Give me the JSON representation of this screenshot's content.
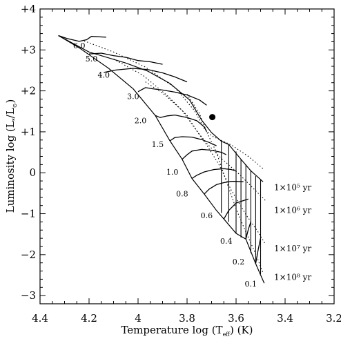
{
  "chart_data": {
    "type": "line",
    "title": "",
    "xlabel_main": "Temperature log (T",
    "xlabel_sub": "eff",
    "xlabel_tail": ") (K)",
    "ylabel_main": "Luminosity log (L",
    "ylabel_sub1": "*",
    "ylabel_mid": "/L",
    "ylabel_sub2": "⊙",
    "ylabel_tail": ")",
    "xlim": [
      4.4,
      3.2
    ],
    "ylim": [
      -3.2,
      4.0
    ],
    "x_reversed": true,
    "x_ticks": [
      {
        "value": 4.4,
        "label": "4.4"
      },
      {
        "value": 4.2,
        "label": "4.2"
      },
      {
        "value": 4.0,
        "label": "4"
      },
      {
        "value": 3.8,
        "label": "3.8"
      },
      {
        "value": 3.6,
        "label": "3.6"
      },
      {
        "value": 3.4,
        "label": "3.4"
      },
      {
        "value": 3.2,
        "label": "3.2"
      }
    ],
    "y_ticks": [
      {
        "value": 4,
        "label": "+4"
      },
      {
        "value": 3,
        "label": "+3"
      },
      {
        "value": 2,
        "label": "+2"
      },
      {
        "value": 1,
        "label": "+1"
      },
      {
        "value": 0,
        "label": "0"
      },
      {
        "value": -1,
        "label": "−1"
      },
      {
        "value": -2,
        "label": "−2"
      },
      {
        "value": -3,
        "label": "−3"
      }
    ],
    "tracks": [
      {
        "mass": "6.0",
        "label_at": [
          4.24,
          3.04
        ],
        "points": [
          [
            4.325,
            3.35
          ],
          [
            4.29,
            3.28
          ],
          [
            4.24,
            3.21
          ],
          [
            4.21,
            3.25
          ],
          [
            4.19,
            3.33
          ],
          [
            4.13,
            3.31
          ]
        ]
      },
      {
        "mass": "5.0",
        "label_at": [
          4.19,
          2.72
        ],
        "points": [
          [
            4.2,
            2.9
          ],
          [
            4.15,
            2.92
          ],
          [
            4.1,
            2.86
          ],
          [
            4.05,
            2.82
          ],
          [
            4.0,
            2.74
          ],
          [
            3.95,
            2.71
          ],
          [
            3.9,
            2.65
          ]
        ]
      },
      {
        "mass": "4.0",
        "label_at": [
          4.14,
          2.32
        ],
        "points": [
          [
            4.14,
            2.45
          ],
          [
            4.09,
            2.51
          ],
          [
            4.02,
            2.55
          ],
          [
            3.96,
            2.52
          ],
          [
            3.9,
            2.44
          ],
          [
            3.85,
            2.34
          ],
          [
            3.8,
            2.22
          ]
        ]
      },
      {
        "mass": "3.0",
        "label_at": [
          4.02,
          1.8
        ],
        "points": [
          [
            4.0,
            1.98
          ],
          [
            3.97,
            2.08
          ],
          [
            3.94,
            2.05
          ],
          [
            3.9,
            2.02
          ],
          [
            3.85,
            1.97
          ],
          [
            3.8,
            1.9
          ],
          [
            3.75,
            1.78
          ],
          [
            3.72,
            1.65
          ]
        ]
      },
      {
        "mass": "2.0",
        "label_at": [
          3.99,
          1.21
        ],
        "points": [
          [
            3.93,
            1.4
          ],
          [
            3.91,
            1.35
          ],
          [
            3.88,
            1.39
          ],
          [
            3.85,
            1.41
          ],
          [
            3.8,
            1.35
          ],
          [
            3.76,
            1.27
          ],
          [
            3.73,
            1.12
          ],
          [
            3.72,
            1.0
          ]
        ]
      },
      {
        "mass": "1.5",
        "label_at": [
          3.92,
          0.63
        ],
        "points": [
          [
            3.87,
            0.78
          ],
          [
            3.85,
            0.86
          ],
          [
            3.82,
            0.88
          ],
          [
            3.78,
            0.87
          ],
          [
            3.74,
            0.81
          ],
          [
            3.71,
            0.74
          ],
          [
            3.68,
            0.66
          ]
        ]
      },
      {
        "mass": "1.0",
        "label_at": [
          3.86,
          -0.05
        ],
        "points": [
          [
            3.82,
            0.33
          ],
          [
            3.8,
            0.44
          ],
          [
            3.78,
            0.53
          ],
          [
            3.74,
            0.57
          ],
          [
            3.7,
            0.55
          ],
          [
            3.66,
            0.5
          ],
          [
            3.64,
            0.44
          ]
        ]
      },
      {
        "mass": "0.8",
        "label_at": [
          3.82,
          -0.58
        ],
        "points": [
          [
            3.78,
            -0.14
          ],
          [
            3.76,
            -0.06
          ],
          [
            3.73,
            0.02
          ],
          [
            3.69,
            0.08
          ],
          [
            3.65,
            0.1
          ],
          [
            3.62,
            0.08
          ],
          [
            3.6,
            0.04
          ]
        ]
      },
      {
        "mass": "0.6",
        "label_at": [
          3.72,
          -1.11
        ],
        "points": [
          [
            3.73,
            -0.52
          ],
          [
            3.71,
            -0.4
          ],
          [
            3.68,
            -0.29
          ],
          [
            3.65,
            -0.24
          ],
          [
            3.62,
            -0.21
          ],
          [
            3.6,
            -0.21
          ],
          [
            3.57,
            -0.22
          ]
        ]
      },
      {
        "mass": "0.4",
        "label_at": [
          3.64,
          -1.73
        ],
        "points": [
          [
            3.65,
            -1.13
          ],
          [
            3.63,
            -0.92
          ],
          [
            3.6,
            -0.74
          ],
          [
            3.57,
            -0.68
          ],
          [
            3.55,
            -0.64
          ]
        ]
      },
      {
        "mass": "0.2",
        "label_at": [
          3.59,
          -2.24
        ],
        "points": [
          [
            3.56,
            -1.62
          ],
          [
            3.55,
            -1.38
          ],
          [
            3.54,
            -1.2
          ]
        ]
      },
      {
        "mass": "0.1",
        "label_at": [
          3.54,
          -2.78
        ],
        "points": [
          [
            3.52,
            -2.22
          ],
          [
            3.51,
            -1.88
          ],
          [
            3.5,
            -1.6
          ]
        ]
      }
    ],
    "upper_envelope": [
      [
        4.325,
        3.35
      ],
      [
        4.2,
        2.95
      ],
      [
        4.05,
        2.68
      ],
      [
        3.96,
        2.48
      ],
      [
        3.87,
        2.18
      ],
      [
        3.79,
        1.78
      ],
      [
        3.74,
        1.28
      ],
      [
        3.7,
        0.98
      ],
      [
        3.66,
        0.77
      ],
      [
        3.63,
        0.69
      ],
      [
        3.58,
        0.33
      ],
      [
        3.54,
        0.05
      ],
      [
        3.49,
        -0.22
      ]
    ],
    "lower_envelope": [
      [
        4.325,
        3.35
      ],
      [
        4.24,
        3.05
      ],
      [
        4.12,
        2.55
      ],
      [
        4.02,
        2.05
      ],
      [
        3.93,
        1.4
      ],
      [
        3.87,
        0.78
      ],
      [
        3.82,
        0.33
      ],
      [
        3.78,
        -0.14
      ],
      [
        3.73,
        -0.52
      ],
      [
        3.68,
        -0.92
      ],
      [
        3.65,
        -1.13
      ],
      [
        3.6,
        -1.48
      ],
      [
        3.56,
        -1.62
      ],
      [
        3.52,
        -2.22
      ],
      [
        3.485,
        -2.7
      ]
    ],
    "isochrones": [
      {
        "label": "1×10⁵ yr",
        "label_at": [
          3.445,
          -0.43
        ],
        "points": [
          [
            4.22,
            3.22
          ],
          [
            4.1,
            2.95
          ],
          [
            3.97,
            2.58
          ],
          [
            3.85,
            2.08
          ],
          [
            3.77,
            1.52
          ],
          [
            3.73,
            1.08
          ],
          [
            3.7,
            0.9
          ],
          [
            3.62,
            0.68
          ],
          [
            3.55,
            0.4
          ],
          [
            3.49,
            0.1
          ]
        ]
      },
      {
        "label": "1×10⁶ yr",
        "label_at": [
          3.445,
          -0.98
        ],
        "points": [
          [
            4.1,
            2.78
          ],
          [
            3.98,
            2.38
          ],
          [
            3.88,
            1.88
          ],
          [
            3.8,
            1.4
          ],
          [
            3.76,
            1.02
          ],
          [
            3.72,
            0.72
          ],
          [
            3.66,
            0.35
          ],
          [
            3.59,
            -0.02
          ],
          [
            3.53,
            -0.38
          ],
          [
            3.48,
            -0.68
          ]
        ]
      },
      {
        "label": "1×10⁷ yr",
        "label_at": [
          3.445,
          -1.92
        ],
        "points": [
          [
            3.97,
            2.22
          ],
          [
            3.89,
            1.9
          ],
          [
            3.82,
            1.52
          ],
          [
            3.77,
            1.1
          ],
          [
            3.72,
            0.68
          ],
          [
            3.67,
            0.2
          ],
          [
            3.62,
            -0.42
          ],
          [
            3.56,
            -1.02
          ],
          [
            3.51,
            -1.45
          ],
          [
            3.48,
            -1.75
          ]
        ]
      },
      {
        "label": "1×10⁸ yr",
        "label_at": [
          3.445,
          -2.62
        ],
        "points": [
          [
            3.8,
            1.92
          ],
          [
            3.75,
            1.45
          ],
          [
            3.72,
            1.0
          ],
          [
            3.68,
            0.5
          ],
          [
            3.64,
            -0.2
          ],
          [
            3.6,
            -0.88
          ],
          [
            3.56,
            -1.45
          ],
          [
            3.52,
            -1.98
          ],
          [
            3.49,
            -2.45
          ]
        ]
      }
    ],
    "hatch_lines": [
      [
        3.66,
        0.77,
        -0.98
      ],
      [
        3.63,
        0.69,
        -1.2
      ],
      [
        3.6,
        0.52,
        -1.48
      ],
      [
        3.58,
        0.33,
        -1.58
      ],
      [
        3.56,
        0.2,
        -1.62
      ],
      [
        3.54,
        0.05,
        -1.96
      ],
      [
        3.52,
        -0.08,
        -2.22
      ],
      [
        3.5,
        -0.16,
        -2.48
      ]
    ],
    "marker": {
      "x": 3.697,
      "y": 1.36
    }
  }
}
